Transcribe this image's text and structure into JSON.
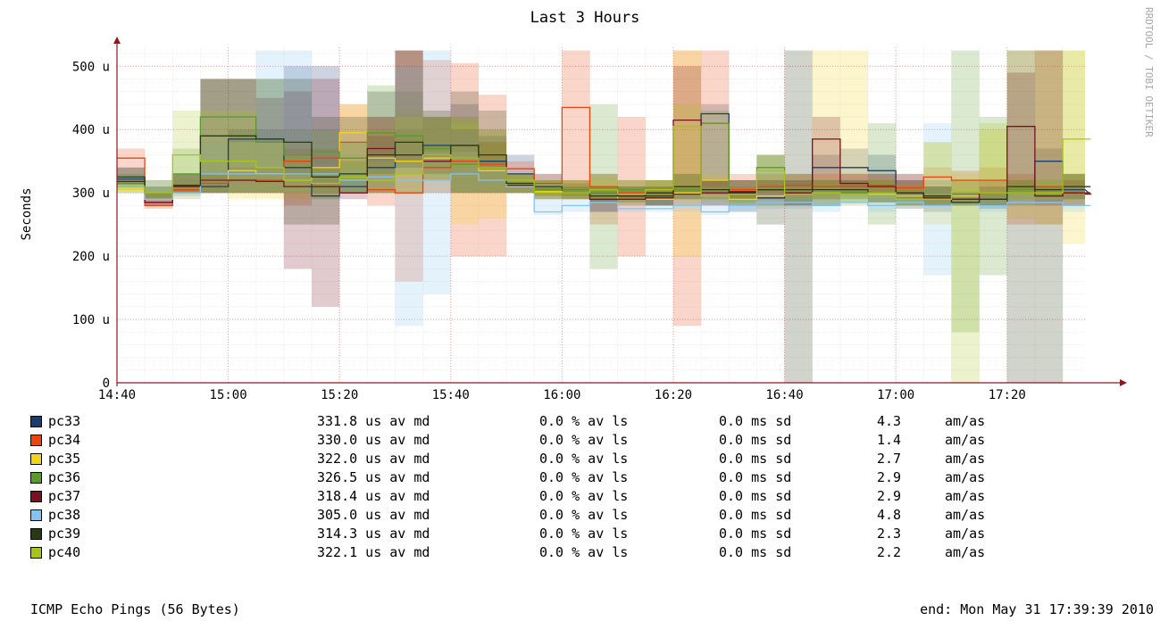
{
  "chart_data": {
    "type": "line",
    "title": "Last 3 Hours",
    "ylabel": "Seconds",
    "watermark": "RRDTOOL / TOBI OETIKER",
    "ylim": [
      0,
      530
    ],
    "y_ticks": [
      {
        "value": 0,
        "label": "0"
      },
      {
        "value": 100,
        "label": "100 u"
      },
      {
        "value": 200,
        "label": "200 u"
      },
      {
        "value": 300,
        "label": "300 u"
      },
      {
        "value": 400,
        "label": "400 u"
      },
      {
        "value": 500,
        "label": "500 u"
      }
    ],
    "x_ticks": [
      "14:40",
      "15:00",
      "15:20",
      "15:40",
      "16:00",
      "16:20",
      "16:40",
      "17:00",
      "17:20"
    ],
    "x_start": "14:40",
    "x_end": "17:34",
    "step_minutes": 5,
    "x_minor_minutes": 5,
    "y_minor": 20,
    "grid": true,
    "series": [
      {
        "name": "pc33",
        "color": "#1a3d6f",
        "values": [
          322,
          285,
          305,
          310,
          385,
          385,
          340,
          295,
          310,
          340,
          360,
          375,
          375,
          350,
          330,
          310,
          300,
          300,
          295,
          295,
          298,
          425,
          290,
          292,
          300,
          340,
          340,
          335,
          295,
          290,
          290,
          280,
          300,
          350,
          305,
          298
        ],
        "min": [
          310,
          280,
          300,
          300,
          380,
          380,
          330,
          290,
          300,
          330,
          350,
          365,
          365,
          340,
          320,
          305,
          295,
          270,
          290,
          280,
          280,
          280,
          270,
          280,
          280,
          290,
          300,
          285,
          275,
          270,
          285,
          275,
          280,
          295,
          290,
          280
        ],
        "max": [
          340,
          320,
          330,
          330,
          400,
          400,
          500,
          500,
          350,
          390,
          400,
          420,
          440,
          390,
          360,
          330,
          315,
          330,
          320,
          310,
          310,
          440,
          310,
          320,
          330,
          360,
          370,
          360,
          330,
          320,
          320,
          300,
          320,
          370,
          330,
          320
        ]
      },
      {
        "name": "pc34",
        "color": "#e8450f",
        "values": [
          355,
          280,
          305,
          315,
          320,
          320,
          350,
          355,
          380,
          305,
          300,
          340,
          350,
          345,
          338,
          315,
          435,
          310,
          300,
          300,
          300,
          410,
          305,
          310,
          312,
          310,
          310,
          312,
          308,
          325,
          320,
          320,
          310,
          310,
          300,
          300
        ],
        "min": [
          330,
          275,
          295,
          300,
          300,
          300,
          280,
          300,
          320,
          280,
          160,
          320,
          200,
          200,
          300,
          300,
          300,
          250,
          200,
          290,
          90,
          300,
          290,
          295,
          300,
          290,
          295,
          300,
          290,
          300,
          295,
          290,
          250,
          250,
          280,
          280
        ],
        "max": [
          370,
          300,
          320,
          330,
          340,
          340,
          370,
          370,
          440,
          420,
          525,
          510,
          505,
          455,
          350,
          330,
          525,
          330,
          420,
          320,
          525,
          525,
          330,
          330,
          330,
          330,
          330,
          330,
          330,
          340,
          335,
          340,
          330,
          525,
          330,
          320
        ]
      },
      {
        "name": "pc35",
        "color": "#f2d21a",
        "values": [
          305,
          290,
          300,
          320,
          335,
          330,
          320,
          340,
          395,
          355,
          350,
          355,
          345,
          335,
          310,
          302,
          300,
          295,
          290,
          290,
          300,
          320,
          290,
          295,
          300,
          300,
          300,
          298,
          295,
          290,
          295,
          300,
          305,
          300,
          300,
          300
        ],
        "min": [
          300,
          285,
          290,
          300,
          290,
          290,
          290,
          300,
          320,
          300,
          300,
          300,
          250,
          260,
          300,
          295,
          290,
          280,
          280,
          280,
          200,
          300,
          280,
          280,
          290,
          290,
          280,
          285,
          280,
          250,
          285,
          290,
          260,
          250,
          220,
          200
        ],
        "max": [
          320,
          300,
          320,
          350,
          380,
          380,
          380,
          400,
          440,
          400,
          430,
          420,
          420,
          400,
          330,
          320,
          320,
          320,
          320,
          320,
          525,
          330,
          310,
          310,
          330,
          525,
          525,
          320,
          315,
          380,
          330,
          400,
          525,
          525,
          525,
          525
        ]
      },
      {
        "name": "pc36",
        "color": "#5a9a2a",
        "values": [
          315,
          300,
          330,
          420,
          420,
          380,
          360,
          365,
          355,
          395,
          390,
          370,
          345,
          340,
          315,
          305,
          305,
          300,
          305,
          300,
          305,
          410,
          298,
          340,
          300,
          300,
          300,
          300,
          290,
          295,
          290,
          300,
          305,
          300,
          310,
          310
        ],
        "min": [
          305,
          290,
          300,
          300,
          300,
          300,
          300,
          300,
          300,
          330,
          330,
          320,
          300,
          300,
          300,
          295,
          290,
          180,
          290,
          280,
          290,
          300,
          285,
          300,
          280,
          280,
          285,
          250,
          280,
          280,
          80,
          170,
          290,
          285,
          280,
          280
        ],
        "max": [
          330,
          310,
          370,
          480,
          480,
          480,
          400,
          400,
          380,
          470,
          460,
          420,
          420,
          400,
          330,
          320,
          320,
          440,
          320,
          320,
          330,
          430,
          320,
          360,
          320,
          320,
          320,
          410,
          310,
          310,
          525,
          420,
          320,
          320,
          330,
          330
        ]
      },
      {
        "name": "pc37",
        "color": "#7a1020",
        "values": [
          318,
          285,
          310,
          320,
          320,
          318,
          310,
          310,
          300,
          370,
          360,
          350,
          355,
          340,
          312,
          300,
          300,
          290,
          290,
          292,
          415,
          300,
          302,
          305,
          300,
          385,
          315,
          310,
          300,
          292,
          290,
          300,
          405,
          295,
          300,
          300
        ],
        "min": [
          310,
          280,
          300,
          300,
          300,
          300,
          180,
          120,
          290,
          300,
          300,
          300,
          300,
          300,
          300,
          290,
          290,
          270,
          280,
          280,
          300,
          280,
          290,
          290,
          280,
          300,
          300,
          300,
          290,
          280,
          280,
          280,
          300,
          280,
          280,
          280
        ],
        "max": [
          330,
          300,
          330,
          480,
          480,
          450,
          460,
          480,
          320,
          420,
          525,
          420,
          400,
          380,
          320,
          310,
          320,
          310,
          310,
          310,
          500,
          320,
          320,
          320,
          320,
          420,
          330,
          330,
          320,
          310,
          300,
          320,
          490,
          310,
          320,
          320
        ]
      },
      {
        "name": "pc38",
        "color": "#86c3f0",
        "values": [
          312,
          290,
          300,
          330,
          330,
          330,
          330,
          330,
          320,
          325,
          320,
          320,
          330,
          320,
          310,
          270,
          280,
          285,
          275,
          275,
          280,
          270,
          280,
          285,
          285,
          280,
          285,
          280,
          285,
          280,
          285,
          280,
          285,
          285,
          280,
          280
        ],
        "min": [
          300,
          285,
          290,
          300,
          300,
          300,
          300,
          300,
          300,
          300,
          90,
          140,
          300,
          300,
          300,
          265,
          270,
          270,
          270,
          270,
          270,
          265,
          270,
          275,
          275,
          270,
          280,
          270,
          280,
          170,
          280,
          270,
          280,
          280,
          270,
          270
        ],
        "max": [
          330,
          300,
          320,
          380,
          380,
          525,
          525,
          400,
          340,
          360,
          500,
          525,
          400,
          340,
          320,
          290,
          290,
          300,
          290,
          290,
          290,
          290,
          290,
          300,
          300,
          310,
          300,
          300,
          300,
          410,
          300,
          300,
          300,
          300,
          300,
          300
        ]
      },
      {
        "name": "pc39",
        "color": "#2a3a10",
        "values": [
          325,
          300,
          312,
          390,
          390,
          385,
          380,
          325,
          330,
          360,
          380,
          360,
          375,
          360,
          315,
          300,
          300,
          295,
          295,
          300,
          310,
          305,
          300,
          305,
          305,
          305,
          305,
          300,
          300,
          295,
          285,
          290,
          310,
          305,
          310,
          310
        ],
        "min": [
          310,
          290,
          300,
          300,
          300,
          300,
          250,
          250,
          300,
          300,
          340,
          330,
          300,
          300,
          300,
          290,
          290,
          285,
          285,
          280,
          290,
          290,
          280,
          250,
          0,
          280,
          290,
          285,
          280,
          280,
          280,
          280,
          0,
          0,
          290,
          290
        ],
        "max": [
          340,
          310,
          330,
          480,
          480,
          480,
          480,
          420,
          420,
          460,
          525,
          430,
          460,
          430,
          330,
          320,
          310,
          310,
          310,
          320,
          330,
          320,
          320,
          360,
          525,
          320,
          320,
          320,
          320,
          310,
          300,
          310,
          525,
          525,
          330,
          330
        ]
      },
      {
        "name": "pc40",
        "color": "#a6c51a",
        "values": [
          310,
          300,
          360,
          350,
          350,
          340,
          320,
          315,
          325,
          320,
          330,
          360,
          355,
          340,
          320,
          300,
          300,
          305,
          298,
          305,
          405,
          295,
          298,
          335,
          298,
          300,
          298,
          300,
          290,
          290,
          302,
          300,
          300,
          300,
          385,
          385
        ],
        "min": [
          300,
          290,
          300,
          300,
          300,
          300,
          300,
          290,
          300,
          300,
          300,
          320,
          300,
          300,
          300,
          290,
          290,
          290,
          285,
          290,
          300,
          285,
          285,
          300,
          285,
          290,
          285,
          290,
          280,
          280,
          0,
          280,
          290,
          290,
          290,
          290
        ],
        "max": [
          330,
          320,
          430,
          430,
          430,
          380,
          360,
          340,
          350,
          350,
          420,
          420,
          410,
          380,
          330,
          320,
          320,
          330,
          310,
          320,
          440,
          310,
          310,
          360,
          310,
          320,
          310,
          320,
          310,
          380,
          320,
          410,
          320,
          320,
          525,
          525
        ]
      }
    ]
  },
  "legend": [
    {
      "name": "pc33",
      "color": "#1a3d6f",
      "median": "331.8 us av md",
      "loss": "0.0 % av ls",
      "sd": "0.0 ms sd",
      "ratio": "4.3",
      "ratio_unit": "am/as"
    },
    {
      "name": "pc34",
      "color": "#e8450f",
      "median": "330.0 us av md",
      "loss": "0.0 % av ls",
      "sd": "0.0 ms sd",
      "ratio": "1.4",
      "ratio_unit": "am/as"
    },
    {
      "name": "pc35",
      "color": "#f2d21a",
      "median": "322.0 us av md",
      "loss": "0.0 % av ls",
      "sd": "0.0 ms sd",
      "ratio": "2.7",
      "ratio_unit": "am/as"
    },
    {
      "name": "pc36",
      "color": "#5a9a2a",
      "median": "326.5 us av md",
      "loss": "0.0 % av ls",
      "sd": "0.0 ms sd",
      "ratio": "2.9",
      "ratio_unit": "am/as"
    },
    {
      "name": "pc37",
      "color": "#7a1020",
      "median": "318.4 us av md",
      "loss": "0.0 % av ls",
      "sd": "0.0 ms sd",
      "ratio": "2.9",
      "ratio_unit": "am/as"
    },
    {
      "name": "pc38",
      "color": "#86c3f0",
      "median": "305.0 us av md",
      "loss": "0.0 % av ls",
      "sd": "0.0 ms sd",
      "ratio": "4.8",
      "ratio_unit": "am/as"
    },
    {
      "name": "pc39",
      "color": "#2a3a10",
      "median": "314.3 us av md",
      "loss": "0.0 % av ls",
      "sd": "0.0 ms sd",
      "ratio": "2.3",
      "ratio_unit": "am/as"
    },
    {
      "name": "pc40",
      "color": "#a6c51a",
      "median": "322.1 us av md",
      "loss": "0.0 % av ls",
      "sd": "0.0 ms sd",
      "ratio": "2.2",
      "ratio_unit": "am/as"
    }
  ],
  "footer": {
    "left": "ICMP Echo Pings (56 Bytes)",
    "right": "end: Mon May 31 17:39:39 2010"
  }
}
